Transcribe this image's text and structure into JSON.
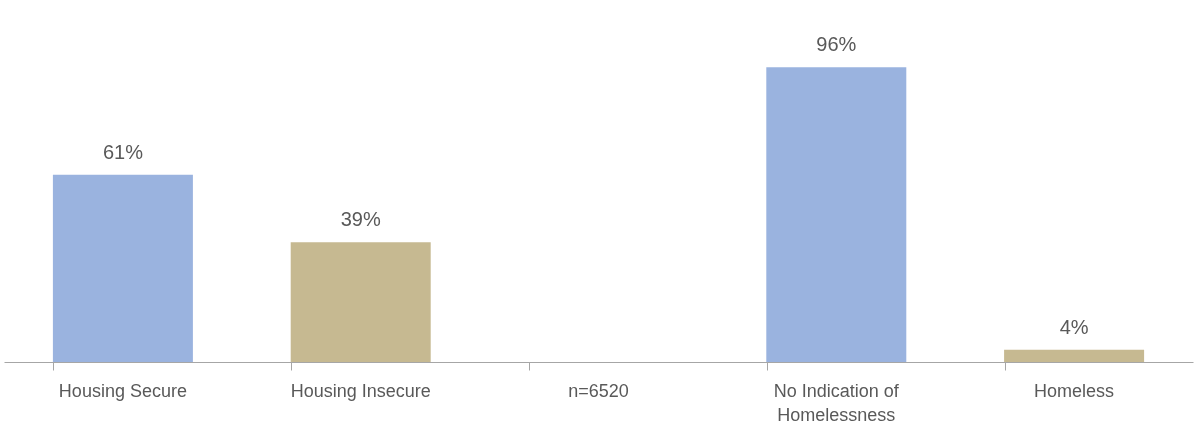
{
  "chart_data": {
    "type": "bar",
    "categories": [
      "Housing Secure",
      "Housing Insecure",
      "n=6520",
      "No Indication of Homelessness",
      "Homeless"
    ],
    "values": [
      61,
      39,
      null,
      96,
      4
    ],
    "colors": [
      "#9ab3df",
      "#c6b991",
      null,
      "#9ab3df",
      "#c6b991"
    ],
    "value_labels": [
      "61%",
      "39%",
      null,
      "96%",
      "4%"
    ],
    "grid": false
  }
}
